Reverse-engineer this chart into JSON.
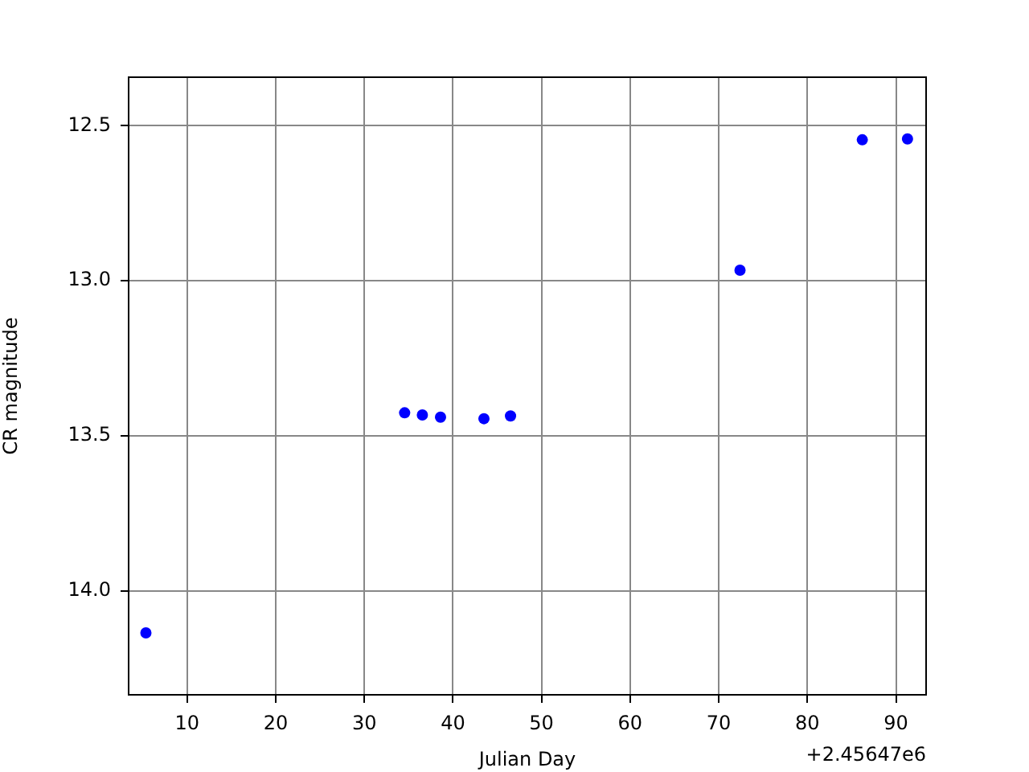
{
  "chart_data": {
    "type": "scatter",
    "xlabel": "Julian Day",
    "ylabel": "CR magnitude",
    "annotations": [
      "+2.45647e6"
    ],
    "series": [
      {
        "color": "#0000ff",
        "x": [
          5.35,
          34.55,
          36.55,
          38.6,
          43.5,
          46.5,
          72.4,
          86.2,
          91.3
        ],
        "values": [
          14.136,
          13.426,
          13.433,
          13.44,
          13.445,
          13.436,
          12.966,
          12.545,
          12.542
        ]
      }
    ],
    "xlim": [
      3.4,
      93.4
    ],
    "xticks": [
      10,
      20,
      30,
      40,
      50,
      60,
      70,
      80,
      90
    ],
    "ylim": [
      14.336,
      12.343
    ],
    "yticks": [
      {
        "value": 12.5,
        "label": "12.5"
      },
      {
        "value": 13,
        "label": "13.0"
      },
      {
        "value": 13.5,
        "label": "13.5"
      },
      {
        "value": 14,
        "label": "14.0"
      }
    ],
    "grid": true,
    "marker": "circle",
    "legend": false
  }
}
